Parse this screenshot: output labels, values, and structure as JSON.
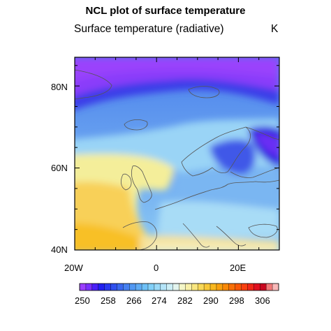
{
  "title": "NCL plot of surface temperature",
  "subtitle_left": "Surface temperature (radiative)",
  "subtitle_right": "K",
  "lat_labels": [
    "80N",
    "60N",
    "40N"
  ],
  "lon_labels": [
    "20W",
    "0",
    "20E"
  ],
  "colorbar": {
    "labels": [
      "250",
      "258",
      "266",
      "274",
      "282",
      "290",
      "298",
      "306"
    ],
    "colors": [
      "#9b3fff",
      "#7a30ff",
      "#4a20f8",
      "#2020f0",
      "#2838f0",
      "#3050ee",
      "#3a68ee",
      "#4680f0",
      "#5298f2",
      "#60acf4",
      "#6ec0f6",
      "#82d0f8",
      "#9adaf8",
      "#b4e4f8",
      "#cceef6",
      "#e2f4ee",
      "#f4f6c8",
      "#f8f0a8",
      "#f8e680",
      "#f8d858",
      "#f8c838",
      "#f8b820",
      "#f8a010",
      "#f88808",
      "#f87008",
      "#f85808",
      "#f84010",
      "#f02818",
      "#e01020",
      "#c80820",
      "#f07878",
      "#f8b8b8"
    ]
  },
  "map": {
    "projection": "cylindrical equidistant",
    "lon_range": [
      -20,
      30
    ],
    "lat_range": [
      40,
      87
    ],
    "lon_ticks": [
      -20,
      0,
      20
    ],
    "lat_ticks": [
      40,
      60,
      80
    ]
  }
}
